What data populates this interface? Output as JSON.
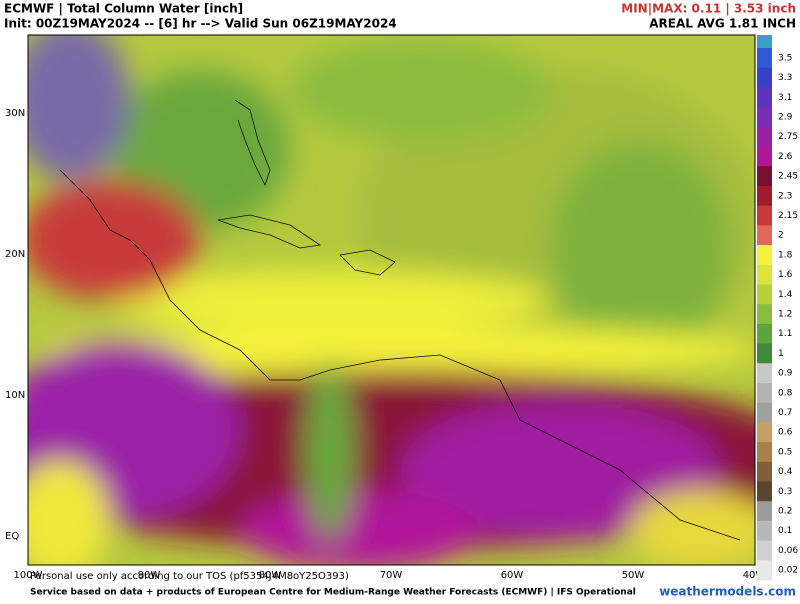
{
  "header": {
    "title": "ECMWF | Total Column Water [inch]",
    "init": "Init: 00Z19MAY2024 -- [6] hr --> Valid Sun 06Z19MAY2024",
    "minmax": "MIN|MAX: 0.11 | 3.53 inch",
    "areal": "AREAL AVG 1.81 INCH"
  },
  "map": {
    "lat_labels": [
      "30N",
      "20N",
      "10N",
      "EQ"
    ],
    "lon_labels": [
      "100W",
      "90W",
      "80W",
      "70W",
      "60W",
      "50W",
      "40W"
    ]
  },
  "legend": {
    "items": [
      {
        "label": "3.5",
        "color": "#2e5ad8"
      },
      {
        "label": "3.3",
        "color": "#3a3fc8"
      },
      {
        "label": "3.1",
        "color": "#5a36c0"
      },
      {
        "label": "2.9",
        "color": "#7a2cb4"
      },
      {
        "label": "2.75",
        "color": "#9b20a8"
      },
      {
        "label": "2.6",
        "color": "#b0189a"
      },
      {
        "label": "2.45",
        "color": "#7a1030"
      },
      {
        "label": "2.3",
        "color": "#a01c2c"
      },
      {
        "label": "2.15",
        "color": "#c83a3a"
      },
      {
        "label": "2",
        "color": "#e06a5a"
      },
      {
        "label": "1.8",
        "color": "#f4f23a"
      },
      {
        "label": "1.6",
        "color": "#dce43a"
      },
      {
        "label": "1.4",
        "color": "#b8d23c"
      },
      {
        "label": "1.2",
        "color": "#8cbc3c"
      },
      {
        "label": "1.1",
        "color": "#5ea43c"
      },
      {
        "label": "1",
        "color": "#3c8c3c"
      },
      {
        "label": "0.9",
        "color": "#c8c8c8"
      },
      {
        "label": "0.8",
        "color": "#b4b4b4"
      },
      {
        "label": "0.7",
        "color": "#a0a0a0"
      },
      {
        "label": "0.6",
        "color": "#c8a064"
      },
      {
        "label": "0.5",
        "color": "#a8804a"
      },
      {
        "label": "0.4",
        "color": "#806038"
      },
      {
        "label": "0.3",
        "color": "#5a4630"
      },
      {
        "label": "0.2",
        "color": "#9c9c9c"
      },
      {
        "label": "0.1",
        "color": "#b8b8b8"
      },
      {
        "label": "0.06",
        "color": "#d0d0d0"
      },
      {
        "label": "0.02",
        "color": "#e8e8e8"
      }
    ]
  },
  "footer": {
    "tos": "Personal use only according to our TOS (pf5354J4M8oY25O393)",
    "source": "Service based on data + products of European Centre for Medium-Range Weather Forecasts (ECMWF) | IFS Operational",
    "site": "weathermodels.com"
  }
}
